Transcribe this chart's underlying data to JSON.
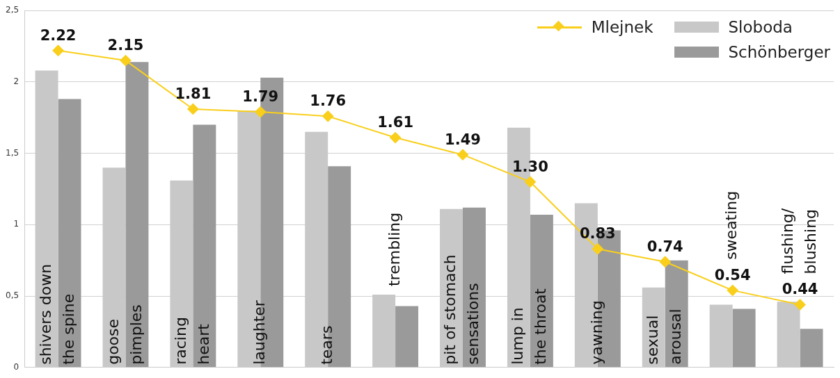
{
  "chart_data": {
    "type": "bar",
    "categories": [
      "shivers down\nthe spine",
      "goose\npimples",
      "racing\nheart",
      "laughter",
      "tears",
      "trembling",
      "pit of stomach\nsensations",
      "lump in\nthe throat",
      "yawning",
      "sexual\narousal",
      "sweating",
      "flushing/\nblushing"
    ],
    "series": [
      {
        "name": "Mlejnek",
        "type": "line",
        "color": "#f9cf1c",
        "values": [
          2.22,
          2.15,
          1.81,
          1.79,
          1.76,
          1.61,
          1.49,
          1.3,
          0.83,
          0.74,
          0.54,
          0.44
        ],
        "value_labels": [
          "2.22",
          "2.15",
          "1.81",
          "1.79",
          "1.76",
          "1.61",
          "1.49",
          "1.30",
          "0.83",
          "0.74",
          "0.54",
          "0.44"
        ]
      },
      {
        "name": "Sloboda",
        "color": "#c8c8c8",
        "values": [
          2.08,
          1.4,
          1.31,
          1.8,
          1.65,
          0.51,
          1.11,
          1.68,
          1.15,
          0.56,
          0.44,
          0.46
        ]
      },
      {
        "name": "Schönberger",
        "color": "#9a9a9a",
        "values": [
          1.88,
          2.14,
          1.7,
          2.03,
          1.41,
          0.43,
          1.12,
          1.07,
          0.96,
          0.75,
          0.41,
          0.27
        ]
      }
    ],
    "ylim": [
      0,
      2.5
    ],
    "yticks": [
      0,
      {
        "value": 0.5,
        "label": "0,5"
      },
      1,
      {
        "value": 1.5,
        "label": "1,5"
      },
      2,
      {
        "value": 2.5,
        "label": "2,5"
      }
    ],
    "grid": "y",
    "legend": "top right",
    "marker": "diamond",
    "line_style": "solid"
  }
}
